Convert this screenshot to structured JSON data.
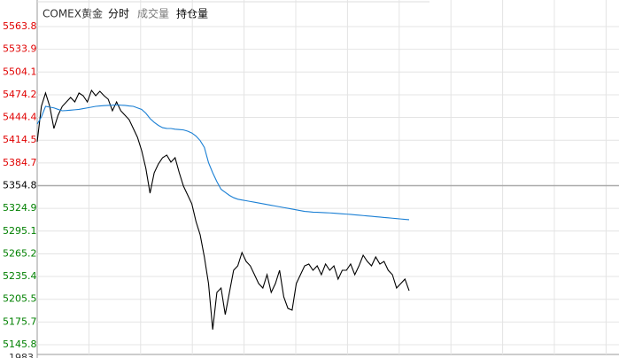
{
  "chart_data": {
    "type": "intraday",
    "tabs": [
      "COMEX黄金",
      "分时",
      "成交量",
      "持仓量"
    ],
    "ylim": [
      5145.8,
      5563.8
    ],
    "yticks": [
      5563.8,
      5533.9,
      5504.1,
      5474.2,
      5444.4,
      5414.5,
      5384.7,
      5354.8,
      5324.9,
      5295.1,
      5265.2,
      5235.4,
      5205.5,
      5175.7,
      5145.8
    ],
    "reference": 5354.8,
    "up_color": "#e00000",
    "down_color": "#008000",
    "reference_color": "#000000",
    "grid": true,
    "volume_top_label": "1983",
    "series": [
      {
        "name": "price",
        "color": "#000000",
        "values": [
          5412.4,
          5459.0,
          5476.5,
          5459.0,
          5429.9,
          5447.4,
          5459.0,
          5464.8,
          5470.7,
          5464.8,
          5476.5,
          5473.0,
          5464.8,
          5480.0,
          5473.0,
          5478.8,
          5473.0,
          5468.3,
          5453.2,
          5464.8,
          5453.2,
          5447.4,
          5441.5,
          5429.9,
          5418.3,
          5400.8,
          5377.5,
          5344.9,
          5371.7,
          5383.3,
          5391.5,
          5395.0,
          5385.7,
          5391.5,
          5371.7,
          5354.2,
          5342.6,
          5330.9,
          5307.6,
          5290.2,
          5261.1,
          5226.1,
          5165.6,
          5214.5,
          5220.3,
          5185.4,
          5214.5,
          5243.6,
          5249.4,
          5266.9,
          5255.2,
          5249.4,
          5237.8,
          5226.1,
          5220.3,
          5237.8,
          5214.5,
          5226.1,
          5243.6,
          5208.7,
          5193.5,
          5191.2,
          5226.1,
          5237.8,
          5249.4,
          5251.8,
          5243.6,
          5249.4,
          5237.8,
          5251.8,
          5243.6,
          5249.4,
          5232.0,
          5243.6,
          5243.6,
          5251.8,
          5237.8,
          5249.4,
          5263.4,
          5255.2,
          5249.4,
          5261.1,
          5251.8,
          5255.2,
          5243.6,
          5237.8,
          5220.3,
          5226.1,
          5232.0,
          5216.8
        ]
      },
      {
        "name": "average",
        "color": "#1a7fd4",
        "values": [
          5435.7,
          5445,
          5459.0,
          5458,
          5457,
          5455,
          5453.2,
          5453.5,
          5454,
          5454.5,
          5455,
          5456,
          5457,
          5458,
          5459,
          5459.5,
          5460,
          5460.2,
          5460.5,
          5461,
          5460.5,
          5460.2,
          5459.5,
          5459,
          5457,
          5455,
          5450,
          5443,
          5438,
          5434,
          5431,
          5430,
          5429.9,
          5429,
          5428.5,
          5428,
          5426.4,
          5424,
          5420,
          5414,
          5405,
          5385,
          5371.7,
          5360,
          5350,
          5346,
          5342,
          5339,
          5337,
          5336,
          5335,
          5334,
          5333,
          5332,
          5331,
          5330,
          5329,
          5328,
          5327,
          5326,
          5325,
          5324,
          5323,
          5322,
          5321,
          5320.5,
          5320,
          5319.8,
          5319.5,
          5319.2,
          5319,
          5318.6,
          5318.2,
          5317.8,
          5317.4,
          5317,
          5316.5,
          5316,
          5315.5,
          5315,
          5314.5,
          5314,
          5313.5,
          5313,
          5312.5,
          5312,
          5311.5,
          5311,
          5310.5,
          5310
        ]
      }
    ]
  }
}
